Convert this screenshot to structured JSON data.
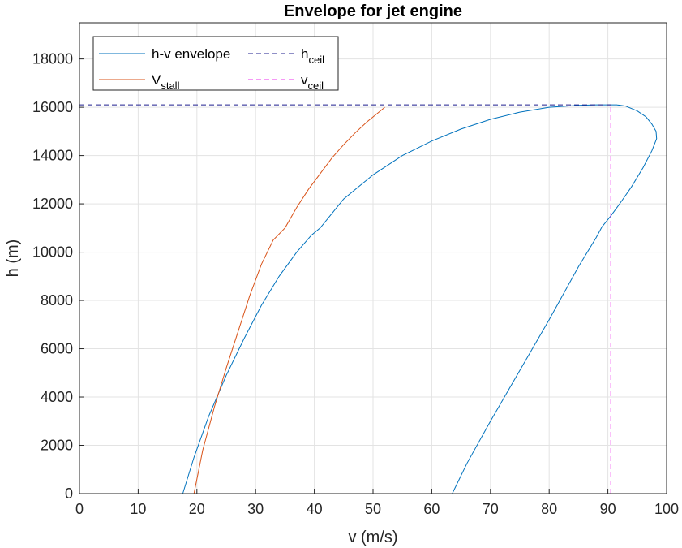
{
  "chart_data": {
    "type": "line",
    "title": "Envelope for jet engine",
    "xlabel": "v (m/s)",
    "ylabel": "h (m)",
    "xlim": [
      0,
      100
    ],
    "ylim": [
      0,
      19500
    ],
    "xticks": [
      0,
      10,
      20,
      30,
      40,
      50,
      60,
      70,
      80,
      90,
      100
    ],
    "yticks": [
      0,
      2000,
      4000,
      6000,
      8000,
      10000,
      12000,
      14000,
      16000,
      18000
    ],
    "grid": true,
    "legend_position": "top-left",
    "series": [
      {
        "name": "h-v envelope",
        "legend_main": "h-v envelope",
        "legend_sub": "",
        "color": "#0072BD",
        "style": "solid",
        "x": [
          17.6,
          19.5,
          22,
          25,
          28,
          31,
          34,
          37,
          39.5,
          41,
          45,
          50,
          55,
          60,
          65,
          70,
          75,
          80,
          85,
          88,
          90,
          91.5,
          93,
          95,
          96.5,
          97.5,
          98.2,
          98.3,
          97.5,
          96,
          94,
          92,
          90.5,
          89,
          88,
          85,
          80,
          75,
          70,
          66,
          63.5
        ],
        "y": [
          0,
          1500,
          3200,
          4900,
          6400,
          7800,
          9000,
          10000,
          10700,
          11000,
          12200,
          13200,
          14000,
          14600,
          15100,
          15500,
          15800,
          16000,
          16080,
          16100,
          16100,
          16100,
          16050,
          15850,
          15600,
          15300,
          15000,
          14700,
          14200,
          13500,
          12700,
          12000,
          11500,
          11050,
          10600,
          9400,
          7200,
          5100,
          3000,
          1250,
          0
        ]
      },
      {
        "name": "V stall",
        "legend_main": "V",
        "legend_sub": "stall",
        "color": "#D95319",
        "style": "solid",
        "x": [
          19.5,
          21,
          23,
          25,
          27,
          29,
          31,
          33,
          35,
          37,
          39,
          41,
          43,
          45,
          47,
          49,
          51,
          52
        ],
        "y": [
          0,
          1800,
          3600,
          5200,
          6700,
          8200,
          9500,
          10500,
          11000,
          11850,
          12600,
          13250,
          13900,
          14450,
          14950,
          15400,
          15800,
          16000
        ]
      },
      {
        "name": "h ceil",
        "legend_main": "h",
        "legend_sub": "ceil",
        "color": "#1F1F8F",
        "style": "dashed",
        "x": [
          0,
          90.5
        ],
        "y": [
          16100,
          16100
        ]
      },
      {
        "name": "v ceil",
        "legend_main": "v",
        "legend_sub": "ceil",
        "color": "#EE33EE",
        "style": "dashed",
        "x": [
          90.5,
          90.5
        ],
        "y": [
          0,
          16100
        ]
      }
    ]
  }
}
